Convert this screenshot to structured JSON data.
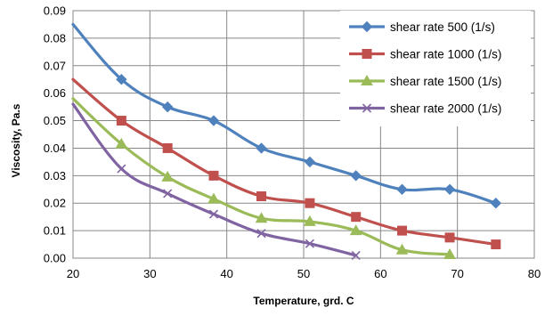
{
  "chart_data": {
    "type": "line",
    "title": "",
    "xlabel": "Temperature, grd. C",
    "ylabel": "Viscosity, Pa.s",
    "xlim": [
      20,
      80
    ],
    "ylim": [
      0,
      0.09
    ],
    "xticks": [
      20,
      30,
      40,
      50,
      60,
      70,
      80
    ],
    "yticks": [
      0,
      0.01,
      0.02,
      0.03,
      0.04,
      0.05,
      0.06,
      0.07,
      0.08,
      0.09
    ],
    "xtick_labels": [
      "20",
      "30",
      "40",
      "50",
      "60",
      "70",
      "80"
    ],
    "ytick_labels": [
      "0.00",
      "0.01",
      "0.02",
      "0.03",
      "0.04",
      "0.05",
      "0.06",
      "0.07",
      "0.08",
      "0.09"
    ],
    "grid": "both",
    "legend_position": "top-right",
    "series": [
      {
        "name": "shear rate 500 (1/s)",
        "color": "#4f81bd",
        "marker": "diamond",
        "x": [
          20,
          26.3,
          32.3,
          38.3,
          44.5,
          50.8,
          56.8,
          62.8,
          69,
          75
        ],
        "y": [
          0.085,
          0.065,
          0.055,
          0.05,
          0.04,
          0.035,
          0.03,
          0.025,
          0.025,
          0.02
        ]
      },
      {
        "name": "shear rate 1000 (1/s)",
        "color": "#c0504d",
        "marker": "square",
        "x": [
          20,
          26.3,
          32.3,
          38.3,
          44.5,
          50.8,
          56.8,
          62.8,
          69,
          75
        ],
        "y": [
          0.065,
          0.05,
          0.04,
          0.03,
          0.0225,
          0.02,
          0.015,
          0.01,
          0.0075,
          0.005
        ]
      },
      {
        "name": "shear rate 1500 (1/s)",
        "color": "#9bbb59",
        "marker": "triangle",
        "x": [
          20,
          26.3,
          32.3,
          38.3,
          44.5,
          50.8,
          56.8,
          62.8,
          69
        ],
        "y": [
          0.058,
          0.0415,
          0.0295,
          0.0215,
          0.0145,
          0.0133,
          0.01,
          0.003,
          0.0013
        ]
      },
      {
        "name": "shear rate 2000 (1/s)",
        "color": "#8064a2",
        "marker": "x",
        "x": [
          20,
          26.3,
          32.3,
          38.3,
          44.5,
          50.8,
          56.8
        ],
        "y": [
          0.056,
          0.0325,
          0.0235,
          0.016,
          0.009,
          0.0053,
          0.001
        ]
      }
    ]
  }
}
